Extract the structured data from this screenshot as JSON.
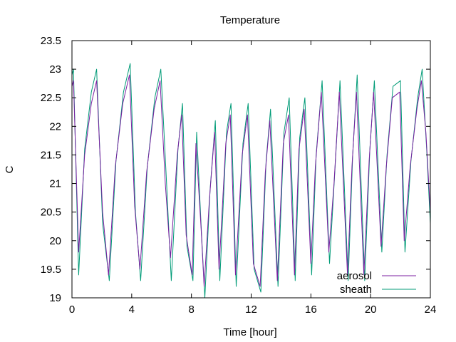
{
  "chart_data": {
    "type": "line",
    "title": "Temperature",
    "xlabel": "Time [hour]",
    "ylabel": "C",
    "xlim": [
      0,
      24
    ],
    "ylim": [
      19,
      23.5
    ],
    "xticks": [
      "0",
      "4",
      "8",
      "12",
      "16",
      "20",
      "24"
    ],
    "xtick_values": [
      0,
      4,
      8,
      12,
      16,
      20,
      24
    ],
    "yticks": [
      "19",
      "19.5",
      "20",
      "20.5",
      "21",
      "21.5",
      "22",
      "22.5",
      "23",
      "23.5"
    ],
    "ytick_values": [
      19,
      19.5,
      20,
      20.5,
      21,
      21.5,
      22,
      22.5,
      23,
      23.5
    ],
    "grid": false,
    "legend_position": "bottom-right",
    "series": [
      {
        "name": "aerosol",
        "color": "#7b1fa2",
        "x": [
          0,
          0.1,
          0.45,
          0.85,
          1.3,
          1.65,
          2.05,
          2.45,
          2.9,
          3.4,
          3.85,
          4.2,
          4.55,
          5.0,
          5.5,
          5.9,
          6.25,
          6.6,
          7.05,
          7.35,
          7.65,
          8.05,
          8.3,
          8.65,
          8.85,
          9.2,
          9.55,
          9.85,
          10.3,
          10.6,
          10.95,
          11.4,
          11.75,
          12.15,
          12.6,
          12.95,
          13.25,
          13.75,
          14.15,
          14.5,
          14.9,
          15.2,
          15.55,
          16.0,
          16.3,
          16.7,
          17.2,
          17.55,
          17.9,
          18.45,
          18.75,
          19.05,
          19.55,
          19.9,
          20.2,
          20.7,
          21.05,
          21.45,
          21.95,
          22.25,
          22.65,
          23.1,
          23.4,
          23.7,
          24
        ],
        "y": [
          22.7,
          22.8,
          19.8,
          21.5,
          22.4,
          22.8,
          20.5,
          19.4,
          21.3,
          22.4,
          22.9,
          20.6,
          19.5,
          21.2,
          22.3,
          22.8,
          21.0,
          19.7,
          21.5,
          22.2,
          20.1,
          19.4,
          21.7,
          20.2,
          19.2,
          20.7,
          21.9,
          19.5,
          21.7,
          22.2,
          19.4,
          21.5,
          22.2,
          19.6,
          19.2,
          21.2,
          22.1,
          19.3,
          21.7,
          22.2,
          19.4,
          21.6,
          22.3,
          19.6,
          21.3,
          22.6,
          19.8,
          21.0,
          22.6,
          19.4,
          21.3,
          22.6,
          19.4,
          21.4,
          22.6,
          19.9,
          21.3,
          22.5,
          22.6,
          20.0,
          21.3,
          22.3,
          22.8,
          21.9,
          20.5
        ]
      },
      {
        "name": "sheath",
        "color": "#009b77",
        "x": [
          0,
          0.1,
          0.45,
          0.85,
          1.3,
          1.65,
          2.05,
          2.5,
          2.95,
          3.45,
          3.9,
          4.25,
          4.6,
          5.05,
          5.55,
          5.95,
          6.3,
          6.65,
          7.1,
          7.4,
          7.7,
          8.1,
          8.35,
          8.7,
          8.9,
          9.25,
          9.6,
          9.9,
          10.35,
          10.65,
          11.0,
          11.45,
          11.8,
          12.2,
          12.65,
          13.0,
          13.3,
          13.8,
          14.2,
          14.55,
          14.95,
          15.25,
          15.6,
          16.05,
          16.35,
          16.75,
          17.25,
          17.6,
          17.95,
          18.5,
          18.8,
          19.1,
          19.6,
          19.95,
          20.25,
          20.75,
          21.1,
          21.5,
          22.0,
          22.3,
          22.7,
          23.15,
          23.45,
          23.75,
          24
        ],
        "y": [
          22.9,
          23.0,
          19.4,
          21.6,
          22.6,
          23.0,
          20.3,
          19.3,
          21.4,
          22.6,
          23.1,
          20.5,
          19.3,
          21.3,
          22.5,
          23.0,
          21.2,
          19.3,
          21.6,
          22.4,
          19.9,
          19.3,
          21.9,
          20.0,
          19.0,
          20.9,
          22.1,
          19.3,
          21.9,
          22.4,
          19.2,
          21.7,
          22.4,
          19.5,
          19.1,
          21.4,
          22.3,
          19.2,
          21.9,
          22.5,
          19.3,
          21.8,
          22.5,
          19.4,
          21.5,
          22.8,
          19.6,
          21.2,
          22.8,
          19.3,
          21.5,
          22.9,
          19.3,
          21.6,
          22.8,
          19.8,
          21.5,
          22.7,
          22.8,
          19.8,
          21.4,
          22.5,
          23.0,
          21.6,
          20.3
        ]
      }
    ]
  }
}
